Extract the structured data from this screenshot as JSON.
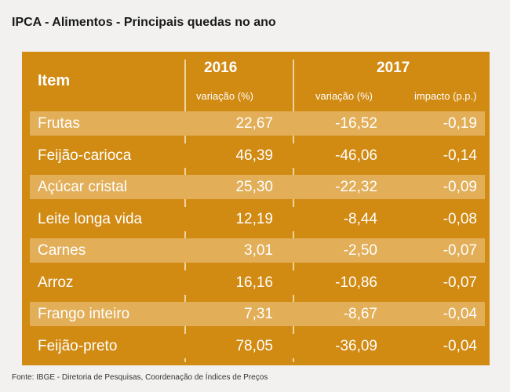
{
  "title": "IPCA - Alimentos - Principais quedas no ano",
  "header": {
    "item": "Item",
    "year_2016": "2016",
    "year_2017": "2017",
    "sub_2016_variacao": "variação (%)",
    "sub_2017_variacao": "variação (%)",
    "sub_2017_impacto": "impacto (p.p.)"
  },
  "rows": [
    {
      "item": "Frutas",
      "v2016": "22,67",
      "v2017": "-16,52",
      "impacto": "-0,19"
    },
    {
      "item": "Feijão-carioca",
      "v2016": "46,39",
      "v2017": "-46,06",
      "impacto": "-0,14"
    },
    {
      "item": "Açúcar cristal",
      "v2016": "25,30",
      "v2017": "-22,32",
      "impacto": "-0,09"
    },
    {
      "item": "Leite longa vida",
      "v2016": "12,19",
      "v2017": "-8,44",
      "impacto": "-0,08"
    },
    {
      "item": "Carnes",
      "v2016": "3,01",
      "v2017": "-2,50",
      "impacto": "-0,07"
    },
    {
      "item": "Arroz",
      "v2016": "16,16",
      "v2017": "-10,86",
      "impacto": "-0,07"
    },
    {
      "item": "Frango inteiro",
      "v2016": "7,31",
      "v2017": "-8,67",
      "impacto": "-0,04"
    },
    {
      "item": "Feijão-preto",
      "v2016": "78,05",
      "v2017": "-36,09",
      "impacto": "-0,04"
    }
  ],
  "source": "Fonte: IBGE - Diretoria de Pesquisas, Coordenação de Índices de Preços",
  "colors": {
    "table_bg": "#d18a12",
    "row_light": "#e2ae58",
    "page_bg": "#f2f1f0"
  }
}
